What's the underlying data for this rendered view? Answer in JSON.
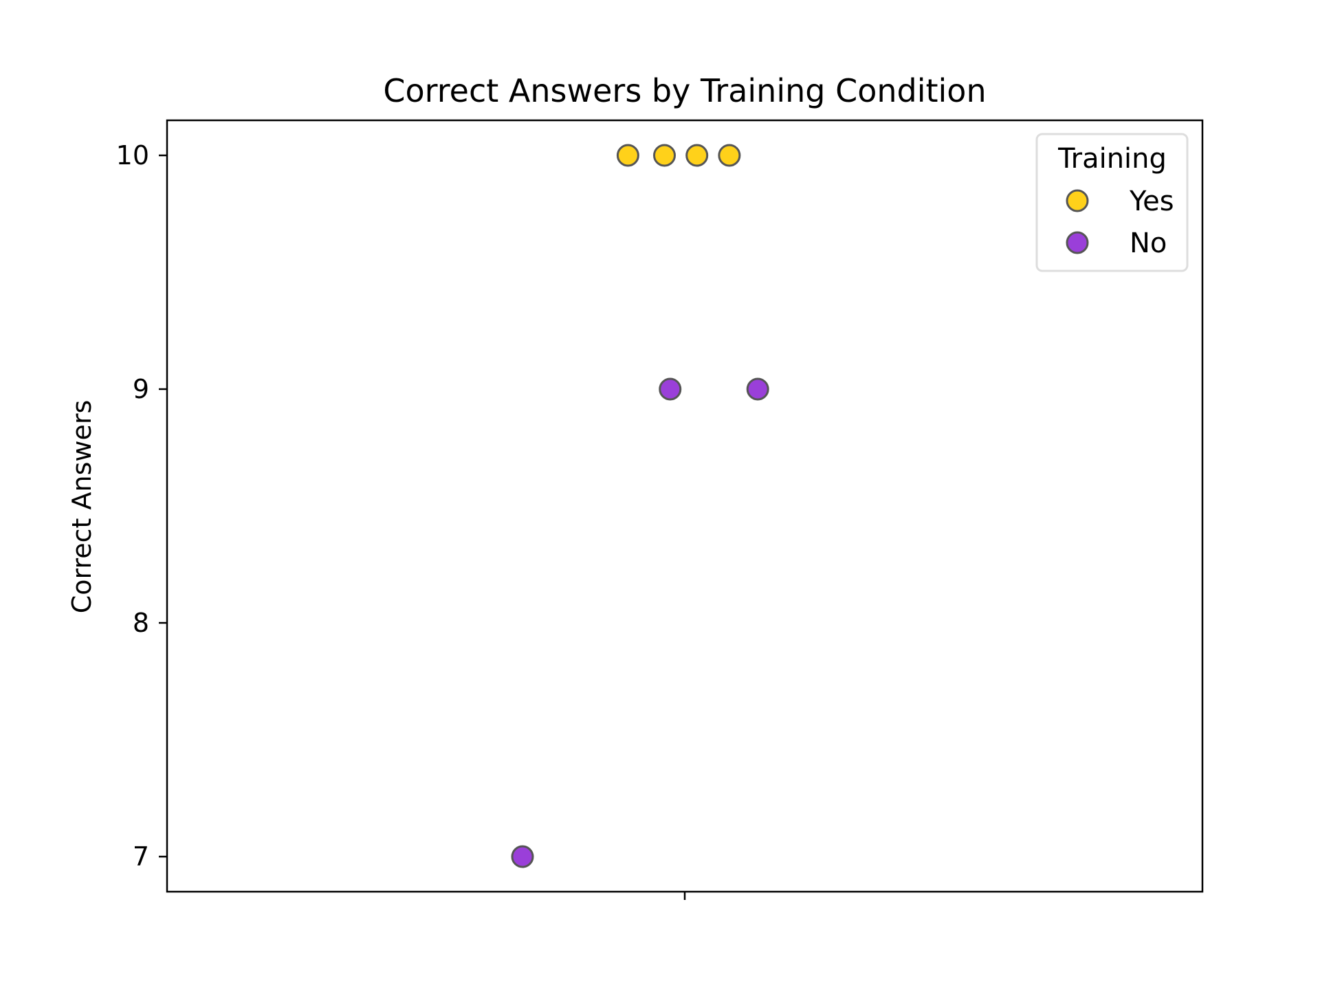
{
  "chart_data": {
    "type": "scatter",
    "title": "Correct Answers by Training Condition",
    "xlabel": "",
    "ylabel": "Correct Answers",
    "ylim": [
      6.85,
      10.15
    ],
    "yticks": [
      7,
      8,
      9,
      10
    ],
    "ytick_labels": [
      "7",
      "8",
      "9",
      "10"
    ],
    "x_categorical": true,
    "xtick_labels": [
      ""
    ],
    "grid": false,
    "legend": {
      "title": "Training",
      "placement": "top-right"
    },
    "series": [
      {
        "name": "Yes",
        "color": "#FFD11A",
        "edge_color": "#555555",
        "points": [
          {
            "jitter": -0.07,
            "y": 10
          },
          {
            "jitter": -0.025,
            "y": 10
          },
          {
            "jitter": 0.015,
            "y": 10
          },
          {
            "jitter": 0.055,
            "y": 10
          }
        ]
      },
      {
        "name": "No",
        "color": "#9A3FD9",
        "edge_color": "#555555",
        "points": [
          {
            "jitter": -0.018,
            "y": 9
          },
          {
            "jitter": 0.09,
            "y": 9
          },
          {
            "jitter": -0.2,
            "y": 7
          }
        ]
      }
    ]
  }
}
